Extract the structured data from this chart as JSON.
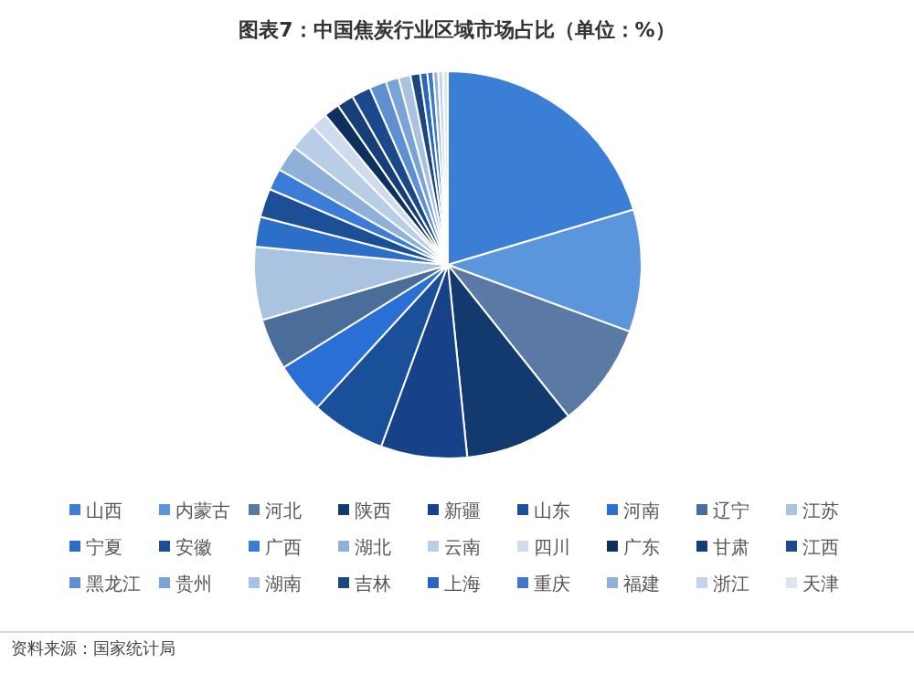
{
  "chart_data": {
    "type": "pie",
    "title": "图表7：中国焦炭行业区域市场占比（单位：%）",
    "categories": [
      "山西",
      "内蒙古",
      "河北",
      "陕西",
      "新疆",
      "山东",
      "河南",
      "辽宁",
      "江苏",
      "宁夏",
      "安徽",
      "广西",
      "湖北",
      "云南",
      "四川",
      "广东",
      "甘肃",
      "江西",
      "黑龙江",
      "贵州",
      "湖南",
      "吉林",
      "上海",
      "重庆",
      "福建",
      "浙江",
      "天津"
    ],
    "values": [
      20.4,
      10.2,
      8.7,
      9.1,
      7.2,
      6.2,
      4.3,
      4.3,
      6.1,
      2.5,
      2.4,
      1.8,
      2.2,
      2.3,
      1.4,
      1.3,
      1.4,
      1.6,
      1.4,
      1.1,
      1.0,
      0.8,
      0.6,
      0.5,
      0.4,
      0.4,
      0.4
    ],
    "colors": [
      "#3a7fd5",
      "#5b95dc",
      "#5a7aa5",
      "#123a6e",
      "#17428a",
      "#1a4f9a",
      "#2a6fd6",
      "#4a6d9a",
      "#a9c3e0",
      "#2c6fc9",
      "#1d4f96",
      "#3b7dd6",
      "#8fb0d8",
      "#b8cde6",
      "#d0dced",
      "#0f2f5c",
      "#163e78",
      "#1b4a8a",
      "#5e8fd0",
      "#7aa3d8",
      "#a9c2e2",
      "#1d4580",
      "#2a66c0",
      "#3d78c9",
      "#8eb0db",
      "#c3d3e8",
      "#dde5f0"
    ],
    "legend": "bottom",
    "annotations": [
      "资料来源：国家统计局"
    ]
  }
}
